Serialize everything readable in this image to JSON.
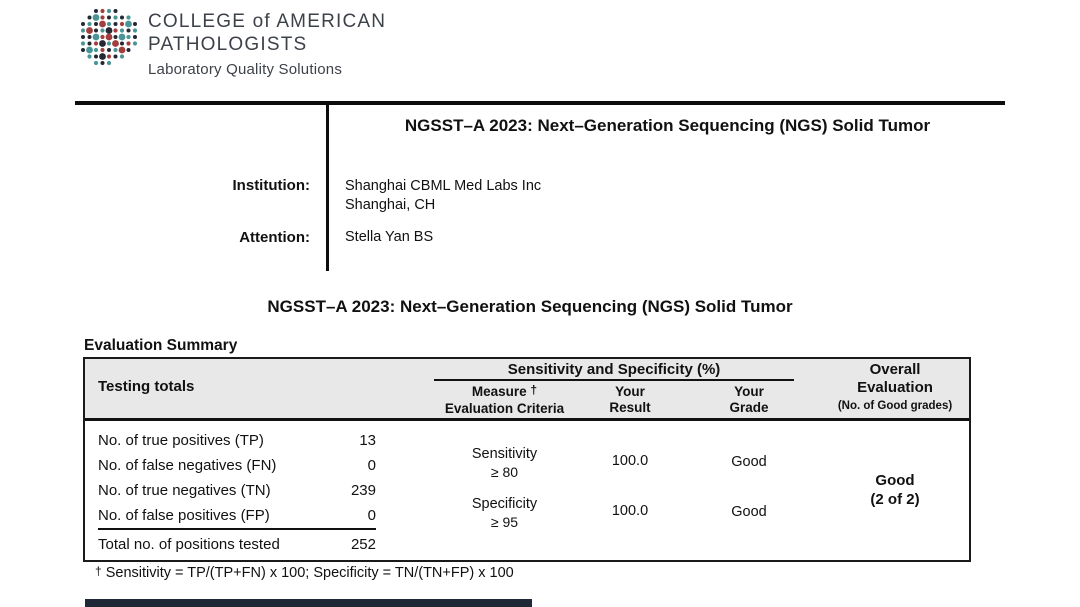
{
  "logo": {
    "line1": "COLLEGE of AMERICAN",
    "line2": "PATHOLOGISTS",
    "tagline": "Laboratory Quality Solutions",
    "colors": {
      "teal": "#4a9596",
      "red": "#a33e3e",
      "dark": "#232833"
    },
    "dot_pattern": [
      "..krtk...",
      ".kTrktkt.",
      "ktkRtkrTk",
      "tRktKrtkt",
      "kkTrRkTtk",
      "tkrKtRkrt",
      "kTtrktRk.",
      ".tkKrkt..",
      "..tkt...."
    ]
  },
  "header": {
    "program_title": "NGSST–A 2023: Next–Generation Sequencing (NGS) Solid Tumor",
    "institution_label": "Institution:",
    "institution_name": "Shanghai CBML Med Labs Inc",
    "institution_location": "Shanghai, CH",
    "attention_label": "Attention:",
    "attention_name": "Stella Yan BS"
  },
  "section": {
    "title": "NGSST–A 2023: Next–Generation Sequencing (NGS) Solid Tumor",
    "summary_heading": "Evaluation Summary"
  },
  "table": {
    "col_testing_totals": "Testing totals",
    "col_sens_spec": "Sensitivity and Specificity (%)",
    "col_measure_word": "Measure",
    "col_measure_dagger": "†",
    "col_measure_line2": "Evaluation Criteria",
    "col_result_line1": "Your",
    "col_result_line2": "Result",
    "col_grade_line1": "Your",
    "col_grade_line2": "Grade",
    "col_overall_line1": "Overall",
    "col_overall_line2": "Evaluation",
    "col_overall_line3": "(No. of Good grades)",
    "totals": [
      {
        "label": "No. of true positives (TP)",
        "value": "13"
      },
      {
        "label": "No. of false negatives (FN)",
        "value": "0"
      },
      {
        "label": "No. of true negatives (TN)",
        "value": "239"
      },
      {
        "label": "No. of false positives (FP)",
        "value": "0"
      }
    ],
    "total_row": {
      "label": "Total no. of positions tested",
      "value": "252"
    },
    "measures": [
      {
        "name": "Sensitivity",
        "criteria": "≥ 80",
        "result": "100.0",
        "grade": "Good"
      },
      {
        "name": "Specificity",
        "criteria": "≥ 95",
        "result": "100.0",
        "grade": "Good"
      }
    ],
    "overall_grade": "Good",
    "overall_count": "(2 of 2)"
  },
  "footnote": {
    "dagger": "†",
    "text": " Sensitivity = TP/(TP+FN) x 100; Specificity = TN/(TN+FP) x 100"
  },
  "colors": {
    "header_gray": "#e8e8e8",
    "rule_black": "#0d0d0d",
    "bottom_bar_navy": "#1e2836"
  }
}
